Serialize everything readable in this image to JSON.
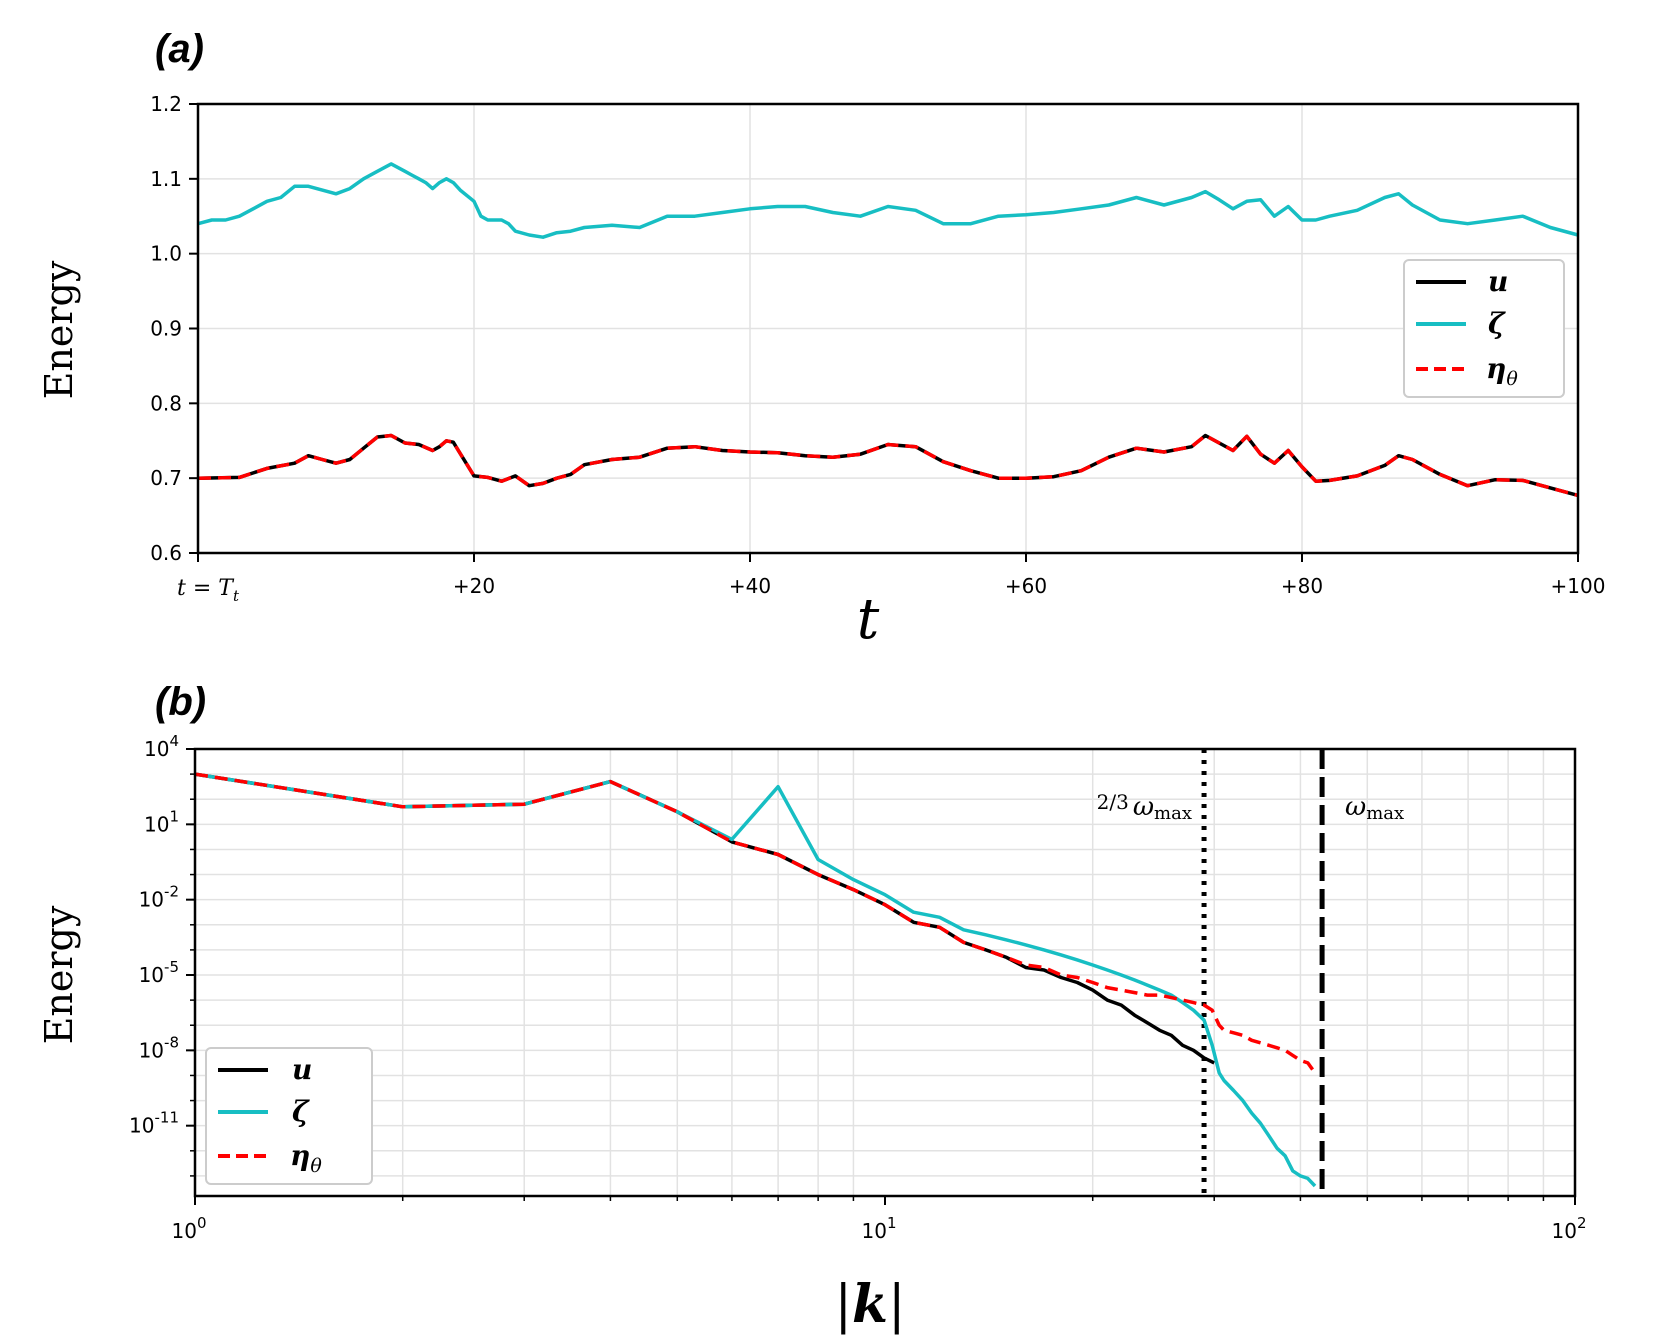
{
  "chart_data": [
    {
      "panel_label": "(a)",
      "type": "line",
      "ylabel": "Energy",
      "xlabel": "t",
      "xlim": [
        0,
        100
      ],
      "ylim": [
        0.6,
        1.2
      ],
      "xticks": [
        {
          "value": 0,
          "label": "t = T",
          "sub": "t"
        },
        {
          "value": 20,
          "label": "+20"
        },
        {
          "value": 40,
          "label": "+40"
        },
        {
          "value": 60,
          "label": "+60"
        },
        {
          "value": 80,
          "label": "+80"
        },
        {
          "value": 100,
          "label": "+100"
        }
      ],
      "yticks": [
        {
          "value": 0.6,
          "label": "0.6"
        },
        {
          "value": 0.7,
          "label": "0.7"
        },
        {
          "value": 0.8,
          "label": "0.8"
        },
        {
          "value": 0.9,
          "label": "0.9"
        },
        {
          "value": 1.0,
          "label": "1.0"
        },
        {
          "value": 1.1,
          "label": "1.1"
        },
        {
          "value": 1.2,
          "label": "1.2"
        }
      ],
      "grid": true,
      "legend": {
        "position": "right",
        "entries": [
          "u",
          "ζ",
          "η"
        ],
        "eta_subscript": "θ"
      },
      "series": [
        {
          "name": "u",
          "color": "#000000",
          "style": "solid",
          "x": [
            0,
            3,
            5,
            7,
            8,
            9,
            10,
            11,
            12,
            13,
            14,
            15,
            16,
            17,
            17.5,
            18,
            18.5,
            19,
            20,
            21,
            22,
            23,
            24,
            25,
            26,
            27,
            28,
            30,
            32,
            34,
            36,
            38,
            40,
            42,
            44,
            46,
            48,
            50,
            52,
            54,
            56,
            58,
            60,
            62,
            64,
            66,
            68,
            70,
            72,
            73,
            74,
            75,
            76,
            77,
            78,
            79,
            80,
            81,
            82,
            84,
            86,
            87,
            88,
            90,
            92,
            94,
            96,
            98,
            100
          ],
          "y": [
            0.7,
            0.701,
            0.713,
            0.72,
            0.73,
            0.725,
            0.72,
            0.725,
            0.74,
            0.755,
            0.757,
            0.747,
            0.745,
            0.737,
            0.742,
            0.75,
            0.748,
            0.733,
            0.703,
            0.701,
            0.696,
            0.703,
            0.69,
            0.693,
            0.7,
            0.705,
            0.718,
            0.725,
            0.728,
            0.74,
            0.742,
            0.737,
            0.735,
            0.734,
            0.73,
            0.728,
            0.732,
            0.745,
            0.742,
            0.722,
            0.71,
            0.7,
            0.7,
            0.702,
            0.71,
            0.728,
            0.74,
            0.735,
            0.742,
            0.757,
            0.747,
            0.737,
            0.756,
            0.732,
            0.72,
            0.737,
            0.715,
            0.696,
            0.697,
            0.703,
            0.717,
            0.73,
            0.725,
            0.705,
            0.69,
            0.698,
            0.697,
            0.687,
            0.677
          ]
        },
        {
          "name": "ζ",
          "color": "#17bec3",
          "style": "solid",
          "x": [
            0,
            1,
            2,
            3,
            4,
            5,
            6,
            7,
            8,
            9,
            10,
            11,
            12,
            13,
            14,
            15,
            15.5,
            16,
            16.5,
            17,
            17.5,
            18,
            18.5,
            19,
            20,
            20.5,
            21,
            22,
            22.5,
            23,
            24,
            25,
            26,
            27,
            28,
            30,
            32,
            34,
            36,
            38,
            40,
            42,
            44,
            46,
            48,
            50,
            52,
            54,
            56,
            58,
            60,
            62,
            64,
            66,
            68,
            70,
            72,
            73,
            74,
            75,
            76,
            77,
            78,
            79,
            80,
            81,
            82,
            84,
            86,
            87,
            88,
            90,
            92,
            94,
            96,
            98,
            100
          ],
          "y": [
            1.04,
            1.045,
            1.045,
            1.05,
            1.06,
            1.07,
            1.075,
            1.09,
            1.09,
            1.085,
            1.08,
            1.087,
            1.1,
            1.11,
            1.12,
            1.11,
            1.105,
            1.1,
            1.095,
            1.087,
            1.095,
            1.1,
            1.095,
            1.085,
            1.07,
            1.05,
            1.045,
            1.045,
            1.04,
            1.03,
            1.025,
            1.022,
            1.028,
            1.03,
            1.035,
            1.038,
            1.035,
            1.05,
            1.05,
            1.055,
            1.06,
            1.063,
            1.063,
            1.055,
            1.05,
            1.063,
            1.058,
            1.04,
            1.04,
            1.05,
            1.052,
            1.055,
            1.06,
            1.065,
            1.075,
            1.065,
            1.075,
            1.083,
            1.072,
            1.06,
            1.07,
            1.072,
            1.05,
            1.063,
            1.045,
            1.045,
            1.05,
            1.058,
            1.075,
            1.08,
            1.065,
            1.045,
            1.04,
            1.045,
            1.05,
            1.035,
            1.025
          ]
        },
        {
          "name": "η",
          "color": "#ff0000",
          "style": "dashed",
          "x": [
            0,
            3,
            5,
            7,
            8,
            9,
            10,
            11,
            12,
            13,
            14,
            15,
            16,
            17,
            17.5,
            18,
            18.5,
            19,
            20,
            21,
            22,
            23,
            24,
            25,
            26,
            27,
            28,
            30,
            32,
            34,
            36,
            38,
            40,
            42,
            44,
            46,
            48,
            50,
            52,
            54,
            56,
            58,
            60,
            62,
            64,
            66,
            68,
            70,
            72,
            73,
            74,
            75,
            76,
            77,
            78,
            79,
            80,
            81,
            82,
            84,
            86,
            87,
            88,
            90,
            92,
            94,
            96,
            98,
            100
          ],
          "y": [
            0.7,
            0.701,
            0.713,
            0.72,
            0.73,
            0.725,
            0.72,
            0.725,
            0.74,
            0.755,
            0.757,
            0.747,
            0.745,
            0.737,
            0.742,
            0.75,
            0.748,
            0.733,
            0.703,
            0.701,
            0.696,
            0.703,
            0.69,
            0.693,
            0.7,
            0.705,
            0.718,
            0.725,
            0.728,
            0.74,
            0.742,
            0.737,
            0.735,
            0.734,
            0.73,
            0.728,
            0.732,
            0.745,
            0.742,
            0.722,
            0.71,
            0.7,
            0.7,
            0.702,
            0.71,
            0.728,
            0.74,
            0.735,
            0.742,
            0.757,
            0.747,
            0.737,
            0.756,
            0.732,
            0.72,
            0.737,
            0.715,
            0.696,
            0.697,
            0.703,
            0.717,
            0.73,
            0.725,
            0.705,
            0.69,
            0.698,
            0.697,
            0.687,
            0.677
          ]
        }
      ]
    },
    {
      "panel_label": "(b)",
      "type": "line",
      "xscale": "log",
      "yscale": "log",
      "ylabel": "Energy",
      "xlabel": "|k|",
      "xlim": [
        1,
        100
      ],
      "ylim_log10": [
        -13.8,
        4
      ],
      "xticks": [
        {
          "base": "10",
          "exp": "0",
          "value": 1
        },
        {
          "base": "10",
          "exp": "1",
          "value": 10
        },
        {
          "base": "10",
          "exp": "2",
          "value": 100
        }
      ],
      "yticks": [
        {
          "base": "10",
          "exp": "4",
          "value_log10": 4
        },
        {
          "base": "10",
          "exp": "1",
          "value_log10": 1
        },
        {
          "base": "10",
          "exp": "-2",
          "value_log10": -2
        },
        {
          "base": "10",
          "exp": "-5",
          "value_log10": -5
        },
        {
          "base": "10",
          "exp": "-8",
          "value_log10": -8
        },
        {
          "base": "10",
          "exp": "-11",
          "value_log10": -11
        }
      ],
      "grid": true,
      "legend": {
        "position": "lower left",
        "entries": [
          "u",
          "ζ",
          "η"
        ],
        "eta_subscript": "θ"
      },
      "vlines": [
        {
          "x": 29,
          "style": "dotted",
          "label_frac": "2/3",
          "label_sym": "ω",
          "label_sub": "max"
        },
        {
          "x": 43,
          "style": "dashed",
          "label_sym": "ω",
          "label_sub": "max"
        }
      ],
      "series": [
        {
          "name": "u",
          "color": "#000000",
          "style": "solid",
          "k": [
            1,
            2,
            3,
            4,
            5,
            6,
            7,
            8,
            9,
            10,
            11,
            12,
            13,
            14,
            15,
            16,
            17,
            18,
            19,
            20,
            21,
            22,
            23,
            24,
            25,
            26,
            27,
            28,
            29,
            30
          ],
          "log10_e": [
            3.0,
            1.7,
            1.8,
            2.7,
            1.5,
            0.3,
            -0.2,
            -1.0,
            -1.6,
            -2.2,
            -2.9,
            -3.1,
            -3.7,
            -4.0,
            -4.3,
            -4.7,
            -4.8,
            -5.1,
            -5.3,
            -5.6,
            -6.0,
            -6.2,
            -6.6,
            -6.9,
            -7.2,
            -7.4,
            -7.8,
            -8.0,
            -8.3,
            -8.5
          ]
        },
        {
          "name": "ζ",
          "color": "#17bec3",
          "style": "solid",
          "k": [
            1,
            2,
            3,
            4,
            5,
            6,
            7,
            8,
            9,
            10,
            11,
            12,
            13,
            14,
            15,
            16,
            17,
            18,
            19,
            20,
            21,
            22,
            23,
            24,
            25,
            26,
            27,
            28,
            29,
            29.8,
            30.5,
            31,
            32,
            33,
            34,
            35,
            36,
            37,
            38,
            39,
            40,
            41,
            42
          ],
          "log10_e": [
            3.0,
            1.7,
            1.8,
            2.7,
            1.5,
            0.4,
            2.5,
            -0.4,
            -1.2,
            -1.8,
            -2.5,
            -2.7,
            -3.2,
            -3.4,
            -3.6,
            -3.8,
            -4.0,
            -4.2,
            -4.4,
            -4.6,
            -4.8,
            -5.0,
            -5.2,
            -5.4,
            -5.6,
            -5.8,
            -6.1,
            -6.4,
            -6.8,
            -7.8,
            -8.9,
            -9.2,
            -9.6,
            -10.0,
            -10.5,
            -10.9,
            -11.4,
            -11.9,
            -12.2,
            -12.8,
            -13.0,
            -13.1,
            -13.4
          ]
        },
        {
          "name": "η",
          "color": "#ff0000",
          "style": "dashed",
          "k": [
            1,
            2,
            3,
            4,
            5,
            6,
            7,
            8,
            9,
            10,
            11,
            12,
            13,
            14,
            15,
            16,
            17,
            18,
            19,
            20,
            21,
            22,
            23,
            24,
            25,
            26,
            27,
            28,
            29,
            29.8,
            30.5,
            31,
            32,
            33,
            34,
            35,
            36,
            37,
            38,
            39,
            40,
            41,
            42
          ],
          "log10_e": [
            3.0,
            1.7,
            1.8,
            2.7,
            1.5,
            0.3,
            -0.2,
            -1.0,
            -1.6,
            -2.2,
            -2.9,
            -3.1,
            -3.7,
            -4.0,
            -4.3,
            -4.6,
            -4.7,
            -5.0,
            -5.1,
            -5.3,
            -5.5,
            -5.6,
            -5.7,
            -5.8,
            -5.8,
            -5.9,
            -6.0,
            -6.1,
            -6.2,
            -6.4,
            -7.0,
            -7.2,
            -7.3,
            -7.4,
            -7.6,
            -7.7,
            -7.8,
            -7.9,
            -8.0,
            -8.2,
            -8.4,
            -8.5,
            -8.9
          ]
        }
      ]
    }
  ]
}
